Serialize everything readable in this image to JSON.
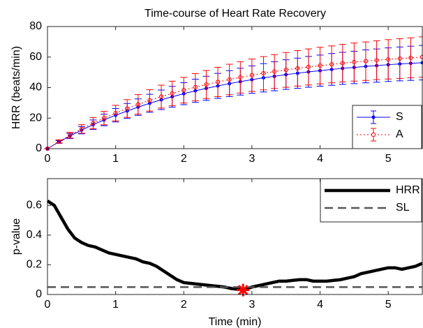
{
  "chart_data": [
    {
      "type": "line",
      "title": "Time-course of Heart Rate Recovery",
      "ylabel": "HRR (beats/min)",
      "x": [
        0,
        0.17,
        0.33,
        0.5,
        0.67,
        0.83,
        1,
        1.17,
        1.33,
        1.5,
        1.67,
        1.83,
        2,
        2.17,
        2.33,
        2.5,
        2.67,
        2.83,
        3,
        3.17,
        3.33,
        3.5,
        3.67,
        3.83,
        4,
        4.17,
        4.33,
        4.5,
        4.67,
        4.83,
        5,
        5.17,
        5.33,
        5.5
      ],
      "series": [
        {
          "name": "S",
          "color": "#0000ff",
          "line_style": "solid",
          "marker": "dot",
          "values": [
            0,
            4.4,
            8.3,
            12.1,
            15.7,
            18.8,
            21.9,
            24.7,
            27.2,
            29.7,
            32.0,
            34.0,
            36.0,
            37.9,
            39.5,
            41.1,
            42.6,
            43.9,
            45.2,
            46.4,
            47.4,
            48.5,
            49.4,
            50.3,
            51.1,
            51.9,
            52.6,
            53.2,
            53.9,
            54.4,
            55.0,
            55.5,
            55.9,
            56.3
          ],
          "errors": [
            0,
            0.9,
            1.7,
            2.4,
            3.1,
            3.8,
            4.4,
            4.9,
            5.4,
            5.9,
            6.4,
            6.8,
            7.2,
            7.6,
            7.9,
            8.2,
            8.5,
            8.8,
            9.0,
            9.3,
            9.5,
            9.7,
            9.9,
            10.1,
            10.2,
            10.4,
            10.5,
            10.6,
            10.8,
            10.9,
            11.0,
            11.1,
            11.2,
            11.3
          ]
        },
        {
          "name": "A",
          "color": "#ff0000",
          "line_style": "dotted",
          "marker": "circle",
          "values": [
            0,
            4.7,
            8.8,
            12.9,
            16.7,
            20.0,
            23.3,
            26.3,
            29.0,
            31.6,
            34.1,
            36.2,
            38.3,
            40.3,
            42.0,
            43.7,
            45.3,
            46.7,
            48.1,
            49.4,
            50.5,
            51.6,
            52.6,
            53.5,
            54.4,
            55.2,
            56.0,
            56.7,
            57.3,
            57.9,
            58.5,
            59.0,
            59.5,
            60.0
          ],
          "errors": [
            0,
            1.0,
            1.9,
            2.8,
            3.7,
            4.4,
            5.1,
            5.8,
            6.4,
            7.0,
            7.5,
            8.0,
            8.4,
            8.9,
            9.2,
            9.6,
            10.0,
            10.3,
            10.6,
            10.9,
            11.1,
            11.4,
            11.6,
            11.8,
            12.0,
            12.1,
            12.3,
            12.5,
            12.6,
            12.7,
            12.9,
            13.0,
            13.1,
            13.2
          ]
        }
      ],
      "xlim": [
        0,
        5.5
      ],
      "ylim": [
        0,
        80
      ],
      "xticks": [
        0,
        1,
        2,
        3,
        4,
        5
      ],
      "yticks": [
        0,
        20,
        40,
        60,
        80
      ],
      "legend": "lower right"
    },
    {
      "type": "line",
      "ylabel": "p-value",
      "xlabel": "Time (min)",
      "x": [
        0,
        0.1,
        0.2,
        0.3,
        0.4,
        0.5,
        0.6,
        0.7,
        0.8,
        0.9,
        1.0,
        1.1,
        1.2,
        1.3,
        1.4,
        1.5,
        1.6,
        1.7,
        1.8,
        1.9,
        2.0,
        2.1,
        2.2,
        2.3,
        2.4,
        2.5,
        2.6,
        2.7,
        2.8,
        2.9,
        3.0,
        3.1,
        3.2,
        3.3,
        3.4,
        3.5,
        3.6,
        3.7,
        3.8,
        3.9,
        4.0,
        4.1,
        4.2,
        4.3,
        4.4,
        4.5,
        4.6,
        4.7,
        4.8,
        4.9,
        5.0,
        5.1,
        5.2,
        5.3,
        5.4,
        5.5
      ],
      "series": [
        {
          "name": "HRR",
          "color": "#000000",
          "line_style": "thick",
          "values": [
            0.63,
            0.6,
            0.52,
            0.44,
            0.38,
            0.35,
            0.33,
            0.32,
            0.3,
            0.28,
            0.27,
            0.26,
            0.25,
            0.24,
            0.22,
            0.21,
            0.19,
            0.16,
            0.13,
            0.1,
            0.08,
            0.075,
            0.07,
            0.065,
            0.06,
            0.055,
            0.05,
            0.04,
            0.035,
            0.035,
            0.05,
            0.06,
            0.07,
            0.08,
            0.09,
            0.09,
            0.095,
            0.1,
            0.1,
            0.09,
            0.09,
            0.09,
            0.095,
            0.1,
            0.11,
            0.12,
            0.14,
            0.15,
            0.16,
            0.17,
            0.18,
            0.18,
            0.17,
            0.18,
            0.19,
            0.21
          ]
        },
        {
          "name": "SL",
          "color": "#555555",
          "line_style": "dashed",
          "x": [
            0,
            5.5
          ],
          "values": [
            0.05,
            0.05
          ]
        }
      ],
      "highlight": {
        "x": 2.87,
        "y": 0.03,
        "color": "#ff0000"
      },
      "xlim": [
        0,
        5.5
      ],
      "ylim": [
        0,
        0.78
      ],
      "xticks": [
        0,
        1,
        2,
        3,
        4,
        5
      ],
      "yticks": [
        0,
        0.2,
        0.4,
        0.6
      ],
      "legend": "upper right"
    }
  ]
}
